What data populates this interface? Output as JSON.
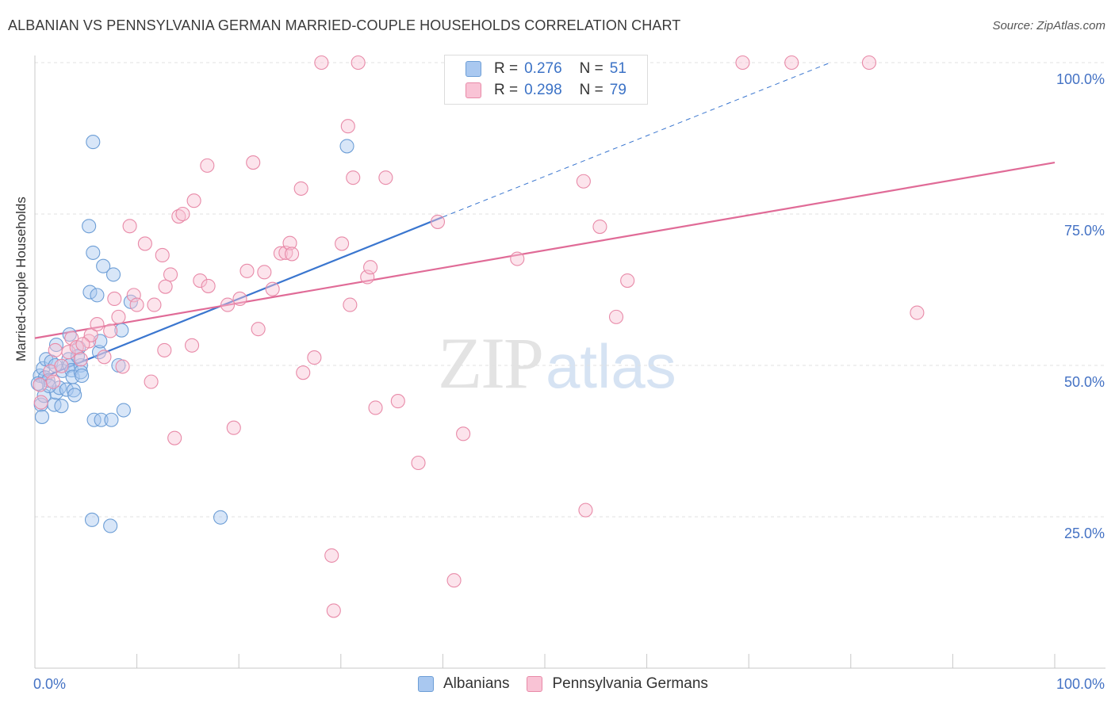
{
  "header": {
    "title": "ALBANIAN VS PENNSYLVANIA GERMAN MARRIED-COUPLE HOUSEHOLDS CORRELATION CHART",
    "source": "Source: ZipAtlas.com"
  },
  "watermark": {
    "zip": "ZIP",
    "atlas": "atlas"
  },
  "legend": {
    "r_label": "R =",
    "n_label": "N =",
    "series": [
      {
        "name": "Albanians",
        "r": "0.276",
        "n": "51",
        "color": "#a9c8f0",
        "stroke": "#6d9ed6"
      },
      {
        "name": "Pennsylvania Germans",
        "r": "0.298",
        "n": "79",
        "color": "#f9c3d5",
        "stroke": "#e88aa8"
      }
    ]
  },
  "chart_data": {
    "type": "scatter",
    "title": "ALBANIAN VS PENNSYLVANIA GERMAN MARRIED-COUPLE HOUSEHOLDS CORRELATION CHART",
    "xlabel": "",
    "ylabel": "Married-couple Households",
    "xlim": [
      0,
      100
    ],
    "ylim": [
      0,
      102
    ],
    "x_tick_labels": [
      "0.0%",
      "100.0%"
    ],
    "y_ticks": [
      {
        "value": 100,
        "label": "100.0%"
      },
      {
        "value": 75,
        "label": "75.0%"
      },
      {
        "value": 50,
        "label": "50.0%"
      },
      {
        "value": 25,
        "label": "25.0%"
      }
    ],
    "series": [
      {
        "name": "Albanians",
        "color": "#3a76cf",
        "trend": {
          "x0": 0,
          "y0": 47.5,
          "x1": 40,
          "y1": 74.5,
          "dash_to_x": 78,
          "dash_to_y": 100
        },
        "points": [
          [
            0.6,
            43.5
          ],
          [
            0.7,
            41.5
          ],
          [
            0.5,
            48.3
          ],
          [
            0.8,
            49.5
          ],
          [
            1.0,
            48.0
          ],
          [
            1.3,
            47.5
          ],
          [
            1.1,
            51.0
          ],
          [
            1.6,
            50.6
          ],
          [
            1.9,
            43.5
          ],
          [
            2.1,
            45.5
          ],
          [
            2.1,
            53.4
          ],
          [
            2.4,
            46.3
          ],
          [
            2.6,
            43.3
          ],
          [
            2.7,
            49.1
          ],
          [
            3.1,
            46.0
          ],
          [
            3.3,
            51.0
          ],
          [
            3.4,
            50.0
          ],
          [
            3.4,
            55.1
          ],
          [
            3.6,
            49.2
          ],
          [
            3.7,
            48.1
          ],
          [
            3.8,
            45.9
          ],
          [
            3.9,
            45.1
          ],
          [
            4.3,
            52.9
          ],
          [
            4.5,
            50.0
          ],
          [
            4.5,
            48.9
          ],
          [
            4.6,
            48.3
          ],
          [
            5.3,
            73.0
          ],
          [
            5.4,
            62.1
          ],
          [
            5.6,
            24.5
          ],
          [
            5.7,
            86.9
          ],
          [
            5.7,
            68.6
          ],
          [
            5.8,
            41.0
          ],
          [
            6.1,
            61.6
          ],
          [
            6.3,
            52.2
          ],
          [
            6.4,
            54.0
          ],
          [
            6.5,
            41.0
          ],
          [
            6.7,
            66.4
          ],
          [
            7.4,
            23.5
          ],
          [
            7.5,
            41.0
          ],
          [
            7.7,
            65.0
          ],
          [
            8.2,
            50.0
          ],
          [
            8.5,
            55.8
          ],
          [
            8.7,
            42.6
          ],
          [
            9.4,
            60.5
          ],
          [
            18.2,
            24.9
          ],
          [
            30.6,
            86.2
          ],
          [
            0.9,
            45.0
          ],
          [
            1.4,
            46.6
          ],
          [
            2.0,
            50.0
          ],
          [
            0.3,
            47.0
          ],
          [
            4.2,
            51.5
          ]
        ]
      },
      {
        "name": "Pennsylvania Germans",
        "color": "#e06b97",
        "trend": {
          "x0": 0,
          "y0": 54.5,
          "x1": 100,
          "y1": 83.5
        },
        "points": [
          [
            0.5,
            46.8
          ],
          [
            0.6,
            43.9
          ],
          [
            1.5,
            49.0
          ],
          [
            1.8,
            47.3
          ],
          [
            2.6,
            49.9
          ],
          [
            3.3,
            52.2
          ],
          [
            3.6,
            54.5
          ],
          [
            4.1,
            53.0
          ],
          [
            4.5,
            51.0
          ],
          [
            5.3,
            54.0
          ],
          [
            5.5,
            55.0
          ],
          [
            6.1,
            56.8
          ],
          [
            6.8,
            51.4
          ],
          [
            7.4,
            55.7
          ],
          [
            7.8,
            61.0
          ],
          [
            8.2,
            58.0
          ],
          [
            8.6,
            49.8
          ],
          [
            9.3,
            73.0
          ],
          [
            9.7,
            61.6
          ],
          [
            10.0,
            60.0
          ],
          [
            10.8,
            70.1
          ],
          [
            11.4,
            47.3
          ],
          [
            11.7,
            60.0
          ],
          [
            12.5,
            68.2
          ],
          [
            12.7,
            52.5
          ],
          [
            12.8,
            63.0
          ],
          [
            13.3,
            65.0
          ],
          [
            13.7,
            38.0
          ],
          [
            14.1,
            74.6
          ],
          [
            14.5,
            75.0
          ],
          [
            15.6,
            77.2
          ],
          [
            15.4,
            53.3
          ],
          [
            16.2,
            64.0
          ],
          [
            16.9,
            83.0
          ],
          [
            17.0,
            63.1
          ],
          [
            18.9,
            60.0
          ],
          [
            19.5,
            39.7
          ],
          [
            20.1,
            61.0
          ],
          [
            20.8,
            65.6
          ],
          [
            21.4,
            83.5
          ],
          [
            21.9,
            56.0
          ],
          [
            22.5,
            65.4
          ],
          [
            23.3,
            62.6
          ],
          [
            24.1,
            68.5
          ],
          [
            24.6,
            68.6
          ],
          [
            25.0,
            70.2
          ],
          [
            25.2,
            68.4
          ],
          [
            26.1,
            79.2
          ],
          [
            26.3,
            48.8
          ],
          [
            27.4,
            51.3
          ],
          [
            28.1,
            100.0
          ],
          [
            29.1,
            18.6
          ],
          [
            29.3,
            9.5
          ],
          [
            30.1,
            70.1
          ],
          [
            30.7,
            89.5
          ],
          [
            30.9,
            60.0
          ],
          [
            31.2,
            81.0
          ],
          [
            31.7,
            100.0
          ],
          [
            32.6,
            64.6
          ],
          [
            32.9,
            66.2
          ],
          [
            33.4,
            43.0
          ],
          [
            34.4,
            81.0
          ],
          [
            35.6,
            44.1
          ],
          [
            37.6,
            33.9
          ],
          [
            39.5,
            73.7
          ],
          [
            41.1,
            14.5
          ],
          [
            42.0,
            38.7
          ],
          [
            47.3,
            67.6
          ],
          [
            53.8,
            80.4
          ],
          [
            54.0,
            26.1
          ],
          [
            55.4,
            72.9
          ],
          [
            57.0,
            58.0
          ],
          [
            58.1,
            64.0
          ],
          [
            69.4,
            100.0
          ],
          [
            74.2,
            100.0
          ],
          [
            81.8,
            100.0
          ],
          [
            86.5,
            58.7
          ],
          [
            2.0,
            52.5
          ],
          [
            4.7,
            53.5
          ]
        ]
      }
    ]
  },
  "axis": {
    "ylabel": "Married-couple Households",
    "x_left": "0.0%",
    "x_right": "100.0%"
  }
}
